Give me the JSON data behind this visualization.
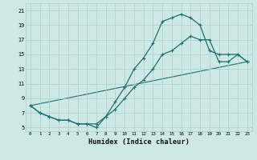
{
  "xlabel": "Humidex (Indice chaleur)",
  "bg_color": "#cde8e5",
  "grid_color": "#aacfcc",
  "line_color": "#1e7070",
  "line1_x": [
    0,
    1,
    2,
    3,
    4,
    5,
    6,
    7,
    8,
    9,
    10,
    11,
    12,
    13,
    14,
    15,
    16,
    17,
    18,
    19,
    20,
    21,
    22,
    23
  ],
  "line1_y": [
    8,
    7,
    6.5,
    6,
    6,
    5.5,
    5.5,
    5,
    6.5,
    8.5,
    10.5,
    13,
    14.5,
    16.5,
    19.5,
    20,
    20.5,
    20,
    19,
    15.5,
    15,
    15,
    15,
    14
  ],
  "line2_x": [
    0,
    1,
    2,
    3,
    4,
    5,
    6,
    7,
    8,
    9,
    10,
    11,
    12,
    13,
    14,
    15,
    16,
    17,
    18,
    19,
    20,
    21,
    22,
    23
  ],
  "line2_y": [
    8,
    7,
    6.5,
    6,
    6,
    5.5,
    5.5,
    5.5,
    6.5,
    7.5,
    9,
    10.5,
    11.5,
    13,
    15,
    15.5,
    16.5,
    17.5,
    17,
    17,
    14,
    14,
    15,
    14
  ],
  "line3_x": [
    0,
    23
  ],
  "line3_y": [
    8,
    14
  ],
  "xlim": [
    -0.5,
    23.5
  ],
  "ylim": [
    4.5,
    22
  ],
  "yticks": [
    5,
    7,
    9,
    11,
    13,
    15,
    17,
    19,
    21
  ],
  "xticks": [
    0,
    1,
    2,
    3,
    4,
    5,
    6,
    7,
    8,
    9,
    10,
    11,
    12,
    13,
    14,
    15,
    16,
    17,
    18,
    19,
    20,
    21,
    22,
    23
  ],
  "xtick_labels": [
    "0",
    "1",
    "2",
    "3",
    "4",
    "5",
    "6",
    "7",
    "8",
    "9",
    "10",
    "11",
    "12",
    "13",
    "14",
    "15",
    "16",
    "17",
    "18",
    "19",
    "20",
    "21",
    "22",
    "23"
  ],
  "ytick_labels": [
    "5",
    "7",
    "9",
    "11",
    "13",
    "15",
    "17",
    "19",
    "21"
  ]
}
